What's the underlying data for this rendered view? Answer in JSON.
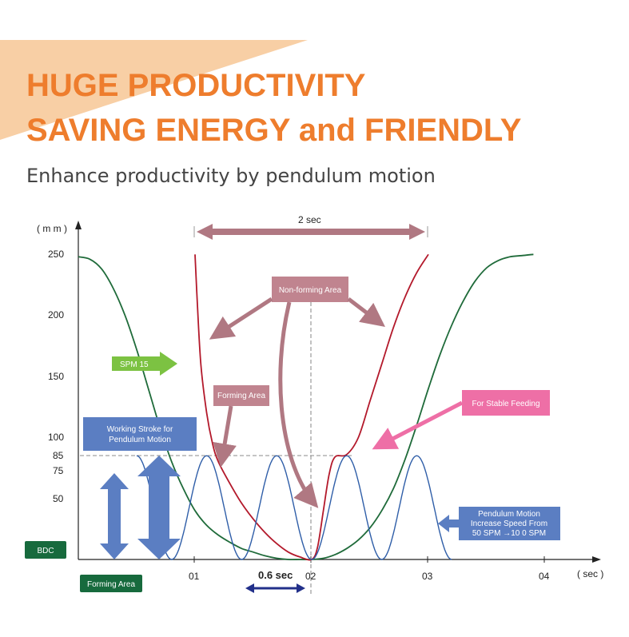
{
  "header": {
    "title_line1": "HUGE PRODUCTIVITY",
    "title_line2": "SAVING ENERGY and FRIENDLY",
    "subtitle": "Enhance productivity by pendulum motion"
  },
  "chart_data": {
    "type": "line",
    "ylabel": "( m m )",
    "xlabel": "( sec )",
    "yticks": [
      "250",
      "200",
      "150",
      "100",
      "85",
      "75",
      "50"
    ],
    "xticks": [
      "01",
      "02",
      "03",
      "04"
    ],
    "ylim": [
      0,
      250
    ],
    "series": [
      {
        "name": "SPM 15",
        "color": "#1f6b3a",
        "points": [
          [
            0,
            248
          ],
          [
            0.1,
            246
          ],
          [
            0.2,
            238
          ],
          [
            0.3,
            222
          ],
          [
            0.4,
            200
          ],
          [
            0.5,
            172
          ],
          [
            0.6,
            140
          ],
          [
            0.7,
            108
          ],
          [
            0.8,
            80
          ],
          [
            0.9,
            58
          ],
          [
            1.0,
            40
          ],
          [
            1.1,
            28
          ],
          [
            1.2,
            20
          ],
          [
            1.3,
            14
          ],
          [
            1.4,
            9
          ],
          [
            1.5,
            6
          ],
          [
            1.6,
            3
          ],
          [
            1.7,
            1
          ],
          [
            1.8,
            0
          ],
          [
            1.9,
            0
          ],
          [
            2.0,
            0
          ],
          [
            2.1,
            1
          ],
          [
            2.2,
            4
          ],
          [
            2.3,
            9
          ],
          [
            2.4,
            16
          ],
          [
            2.5,
            26
          ],
          [
            2.6,
            40
          ],
          [
            2.7,
            58
          ],
          [
            2.8,
            82
          ],
          [
            2.9,
            110
          ],
          [
            3.0,
            140
          ],
          [
            3.1,
            168
          ],
          [
            3.2,
            192
          ],
          [
            3.3,
            212
          ],
          [
            3.4,
            228
          ],
          [
            3.5,
            239
          ],
          [
            3.6,
            245
          ],
          [
            3.7,
            248
          ],
          [
            3.8,
            249
          ],
          [
            3.9,
            250
          ]
        ]
      },
      {
        "name": "Working Stroke for Pendulum Motion",
        "color": "#b3192b",
        "points": [
          [
            1.0,
            250
          ],
          [
            1.02,
            210
          ],
          [
            1.05,
            160
          ],
          [
            1.1,
            120
          ],
          [
            1.15,
            95
          ],
          [
            1.2,
            80
          ],
          [
            1.3,
            62
          ],
          [
            1.4,
            46
          ],
          [
            1.5,
            33
          ],
          [
            1.6,
            22
          ],
          [
            1.7,
            13
          ],
          [
            1.8,
            6
          ],
          [
            1.9,
            2
          ],
          [
            2.0,
            0
          ],
          [
            2.05,
            10
          ],
          [
            2.1,
            40
          ],
          [
            2.15,
            70
          ],
          [
            2.2,
            84
          ],
          [
            2.3,
            86
          ],
          [
            2.4,
            100
          ],
          [
            2.5,
            130
          ],
          [
            2.6,
            160
          ],
          [
            2.7,
            190
          ],
          [
            2.8,
            215
          ],
          [
            2.9,
            235
          ],
          [
            3.0,
            250
          ]
        ]
      },
      {
        "name": "Pendulum Motion",
        "color": "#2f5ea8",
        "period_sec": 0.6,
        "amplitude_mm": 85,
        "x_range": [
          0.5,
          3.2
        ]
      }
    ],
    "annotations": {
      "interval_2sec": "2 sec",
      "interval_06sec": "0.6 sec",
      "non_forming_area": "Non-forming Area",
      "forming_area_box": "Forming Area",
      "spm15": "SPM 15",
      "for_stable_feeding": "For Stable Feeding",
      "working_stroke_line1": "Working Stroke for",
      "working_stroke_line2": "Pendulum Motion",
      "pendulum_line1": "Pendulum Motion",
      "pendulum_line2": "Increase Speed From",
      "pendulum_line3": "50 SPM →10 0 SPM",
      "bdc": "BDC",
      "forming_area_legend": "Forming Area"
    },
    "colors": {
      "orange": "#ee7d2d",
      "peach": "#f8cfa5",
      "mauve": "#c0848f",
      "green_label": "#7cc242",
      "pink": "#ee6fa6",
      "blue_box": "#5b7ec2",
      "dark_green": "#176a3d",
      "navy": "#22308a"
    }
  }
}
